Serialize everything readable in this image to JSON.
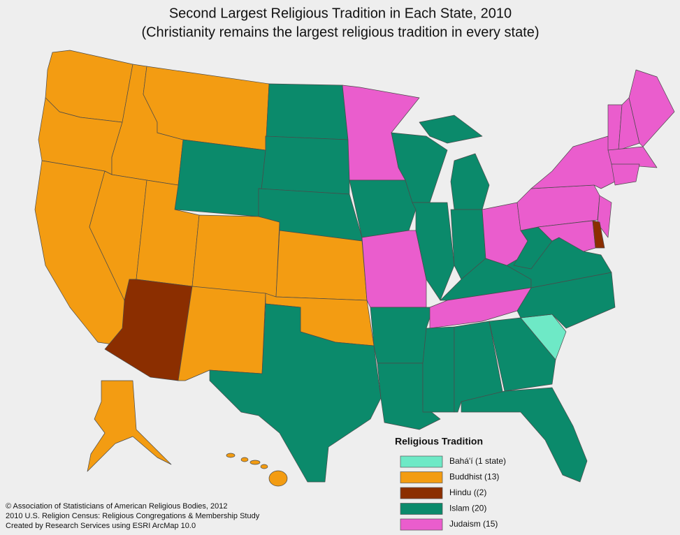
{
  "header": {
    "title": "Second Largest Religious Tradition in Each State, 2010",
    "subtitle": "(Christianity remains the largest religious tradition in every state)"
  },
  "legend": {
    "title": "Religious Tradition",
    "items": [
      {
        "label": "Bahá'í (1 state)",
        "color": "#6ee9c6"
      },
      {
        "label": "Buddhist (13)",
        "color": "#f39c12"
      },
      {
        "label": "Hindu ((2)",
        "color": "#8b2e00"
      },
      {
        "label": "Islam (20)",
        "color": "#0b8a6b"
      },
      {
        "label": "Judaism (15)",
        "color": "#ea5dcd"
      }
    ]
  },
  "credits": [
    "© Association of Statisticians of American Religious Bodies, 2012",
    "2010 U.S. Religion Census: Religious Congregations & Membership Study",
    "Created by Research Services using ESRI ArcMap 10.0"
  ]
}
